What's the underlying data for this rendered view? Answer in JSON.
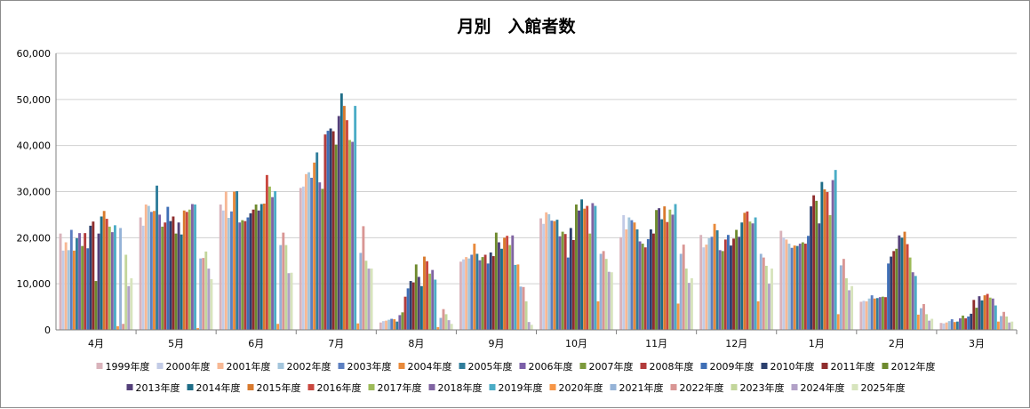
{
  "chart_data": {
    "type": "bar",
    "title": "月別　入館者数",
    "xlabel": "",
    "ylabel": "",
    "ylim": [
      0,
      60000
    ],
    "yticks": [
      "0",
      "10,000",
      "20,000",
      "30,000",
      "40,000",
      "50,000",
      "60,000"
    ],
    "grid": true,
    "legend_position": "bottom",
    "categories": [
      "4月",
      "5月",
      "6月",
      "7月",
      "8月",
      "9月",
      "10月",
      "11月",
      "12月",
      "1月",
      "2月",
      "3月"
    ],
    "series": [
      {
        "name": "1999年度",
        "color": "#d9b3bb",
        "values": [
          20900,
          24400,
          27200,
          30800,
          1600,
          14800,
          24200,
          20100,
          20600,
          21500,
          6100,
          1500
        ]
      },
      {
        "name": "2000年度",
        "color": "#c2cbe6",
        "values": [
          17200,
          22600,
          25900,
          31100,
          1900,
          15300,
          23000,
          24900,
          17900,
          20000,
          6300,
          1400
        ]
      },
      {
        "name": "2001年度",
        "color": "#f7b894",
        "values": [
          19000,
          27200,
          30000,
          33800,
          2000,
          15800,
          25500,
          21800,
          18500,
          19600,
          6200,
          1600
        ]
      },
      {
        "name": "2002年度",
        "color": "#a3c5dc",
        "values": [
          17300,
          26900,
          24300,
          34200,
          2200,
          15500,
          25100,
          24400,
          19900,
          18700,
          6800,
          1900
        ]
      },
      {
        "name": "2003年度",
        "color": "#5b7fc1",
        "values": [
          21700,
          25600,
          25700,
          33000,
          2400,
          16300,
          23700,
          23800,
          20200,
          17800,
          7500,
          2300
        ]
      },
      {
        "name": "2004年度",
        "color": "#e8893a",
        "values": [
          17200,
          25800,
          30000,
          36300,
          2300,
          18700,
          23600,
          23300,
          23000,
          18300,
          6800,
          1700
        ]
      },
      {
        "name": "2005年度",
        "color": "#2f7d9b",
        "values": [
          19900,
          31300,
          30100,
          38500,
          1800,
          16500,
          23900,
          21800,
          21600,
          18200,
          6900,
          1800
        ]
      },
      {
        "name": "2006年度",
        "color": "#7b5fa8",
        "values": [
          21000,
          25000,
          23300,
          32000,
          3200,
          15100,
          20300,
          19200,
          17300,
          18700,
          7100,
          2500
        ]
      },
      {
        "name": "2007年度",
        "color": "#7c9a3c",
        "values": [
          18200,
          22400,
          23800,
          30600,
          3800,
          15800,
          21300,
          18700,
          17100,
          19000,
          7200,
          3100
        ]
      },
      {
        "name": "2008年度",
        "color": "#b23b3b",
        "values": [
          21000,
          23300,
          23600,
          42400,
          7200,
          16300,
          20800,
          17900,
          19600,
          18700,
          7100,
          2500
        ]
      },
      {
        "name": "2009年度",
        "color": "#3f6fb6",
        "values": [
          17700,
          26700,
          24400,
          43200,
          9000,
          14400,
          15700,
          19700,
          20600,
          20400,
          14400,
          2900
        ]
      },
      {
        "name": "2010年度",
        "color": "#2b3f6d",
        "values": [
          22600,
          23600,
          25300,
          43700,
          10600,
          16800,
          22100,
          21800,
          18300,
          26800,
          15900,
          3500
        ]
      },
      {
        "name": "2011年度",
        "color": "#8f2d2d",
        "values": [
          23500,
          24600,
          26100,
          43100,
          10300,
          16000,
          19500,
          20900,
          19800,
          29200,
          17100,
          6500
        ]
      },
      {
        "name": "2012年度",
        "color": "#6e8a2e",
        "values": [
          10600,
          20900,
          27200,
          40200,
          14200,
          21100,
          27200,
          26000,
          21700,
          28000,
          17600,
          4800
        ]
      },
      {
        "name": "2013年度",
        "color": "#54407a",
        "values": [
          20900,
          23300,
          25900,
          46400,
          11500,
          19000,
          25900,
          26400,
          20200,
          23100,
          20500,
          7300
        ]
      },
      {
        "name": "2014年度",
        "color": "#1e6d87",
        "values": [
          24600,
          20700,
          27300,
          51300,
          9500,
          17600,
          28300,
          24000,
          23300,
          32100,
          20000,
          6400
        ]
      },
      {
        "name": "2015年度",
        "color": "#d87a2e",
        "values": [
          25800,
          25900,
          27400,
          48600,
          15900,
          20000,
          26300,
          26800,
          25400,
          30500,
          21300,
          7500
        ]
      },
      {
        "name": "2016年度",
        "color": "#c9473f",
        "values": [
          24100,
          25600,
          33600,
          45500,
          14900,
          20400,
          26900,
          23400,
          25700,
          29900,
          18600,
          7800
        ]
      },
      {
        "name": "2017年度",
        "color": "#9dbb59",
        "values": [
          22400,
          26100,
          31100,
          41200,
          12200,
          18400,
          20900,
          26100,
          23500,
          24900,
          15700,
          7000
        ]
      },
      {
        "name": "2018年度",
        "color": "#8064a2",
        "values": [
          21200,
          27300,
          28800,
          40800,
          13000,
          20500,
          27500,
          25000,
          23100,
          32500,
          12500,
          6800
        ]
      },
      {
        "name": "2019年度",
        "color": "#4bacc6",
        "values": [
          22700,
          27200,
          30100,
          48600,
          10900,
          14100,
          26900,
          27300,
          24400,
          34700,
          11700,
          5300
        ]
      },
      {
        "name": "2020年度",
        "color": "#f79646",
        "values": [
          800,
          400,
          1300,
          1400,
          600,
          14200,
          6200,
          5700,
          6200,
          3400,
          3300,
          1800
        ]
      },
      {
        "name": "2021年度",
        "color": "#95b3d7",
        "values": [
          22100,
          15500,
          18400,
          16700,
          2600,
          9400,
          16500,
          16500,
          16500,
          14000,
          4700,
          3000
        ]
      },
      {
        "name": "2022年度",
        "color": "#d99694",
        "values": [
          1300,
          15600,
          21100,
          22500,
          4500,
          9300,
          17100,
          18500,
          15700,
          15400,
          5600,
          3900
        ]
      },
      {
        "name": "2023年度",
        "color": "#c3d69b",
        "values": [
          16300,
          17000,
          18400,
          15000,
          3400,
          6200,
          15400,
          13300,
          13900,
          11200,
          3400,
          2900
        ]
      },
      {
        "name": "2024年度",
        "color": "#b2a1c7",
        "values": [
          9500,
          13300,
          12300,
          13300,
          2100,
          1700,
          12600,
          10200,
          10000,
          8600,
          2000,
          1600
        ]
      },
      {
        "name": "2025年度",
        "color": "#d7e4bd",
        "values": [
          11200,
          11000,
          12400,
          13300,
          1300,
          1100,
          12500,
          11200,
          13300,
          9500,
          2400,
          1800
        ]
      }
    ]
  }
}
